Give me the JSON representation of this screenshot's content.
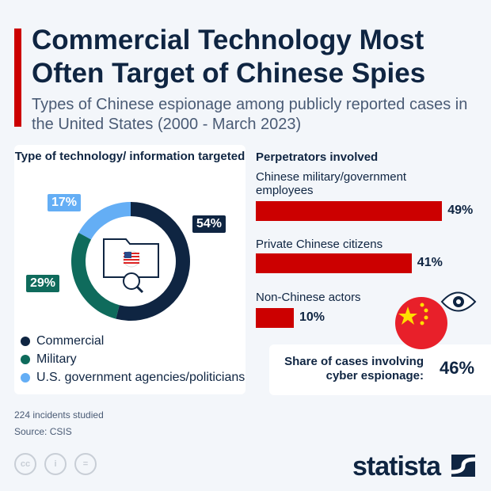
{
  "header": {
    "title": "Commercial Technology Most Often Target of Chinese Spies",
    "subtitle": "Types of Chinese espionage among publicly reported cases in the United States (2000 - March 2023)"
  },
  "chart_data": [
    {
      "type": "pie",
      "title": "Type of technology/ information targeted",
      "categories": [
        "Commercial",
        "Military",
        "U.S. government agencies/politicians"
      ],
      "values": [
        54,
        29,
        17
      ],
      "labels": [
        "54%",
        "29%",
        "17%"
      ],
      "colors": [
        "#0f2542",
        "#0f6b5c",
        "#64aef5"
      ],
      "legend": "bottom"
    },
    {
      "type": "bar",
      "title": "Perpetrators involved",
      "categories": [
        "Chinese military/government employees",
        "Private Chinese citizens",
        "Non-Chinese actors"
      ],
      "values": [
        49,
        41,
        10
      ],
      "labels": [
        "49%",
        "41%",
        "10%"
      ],
      "color": "#cc0000"
    }
  ],
  "share": {
    "label": "Share of cases involving cyber espionage:",
    "value": "46%"
  },
  "footer": {
    "note": "224 incidents studied",
    "source": "Source: CSIS",
    "logo": "statista"
  },
  "icons": [
    "folder-search-icon",
    "us-flag-icon",
    "china-flag-icon",
    "eye-icon",
    "cc-icon",
    "person-icon",
    "equals-icon",
    "statista-logo-icon"
  ]
}
